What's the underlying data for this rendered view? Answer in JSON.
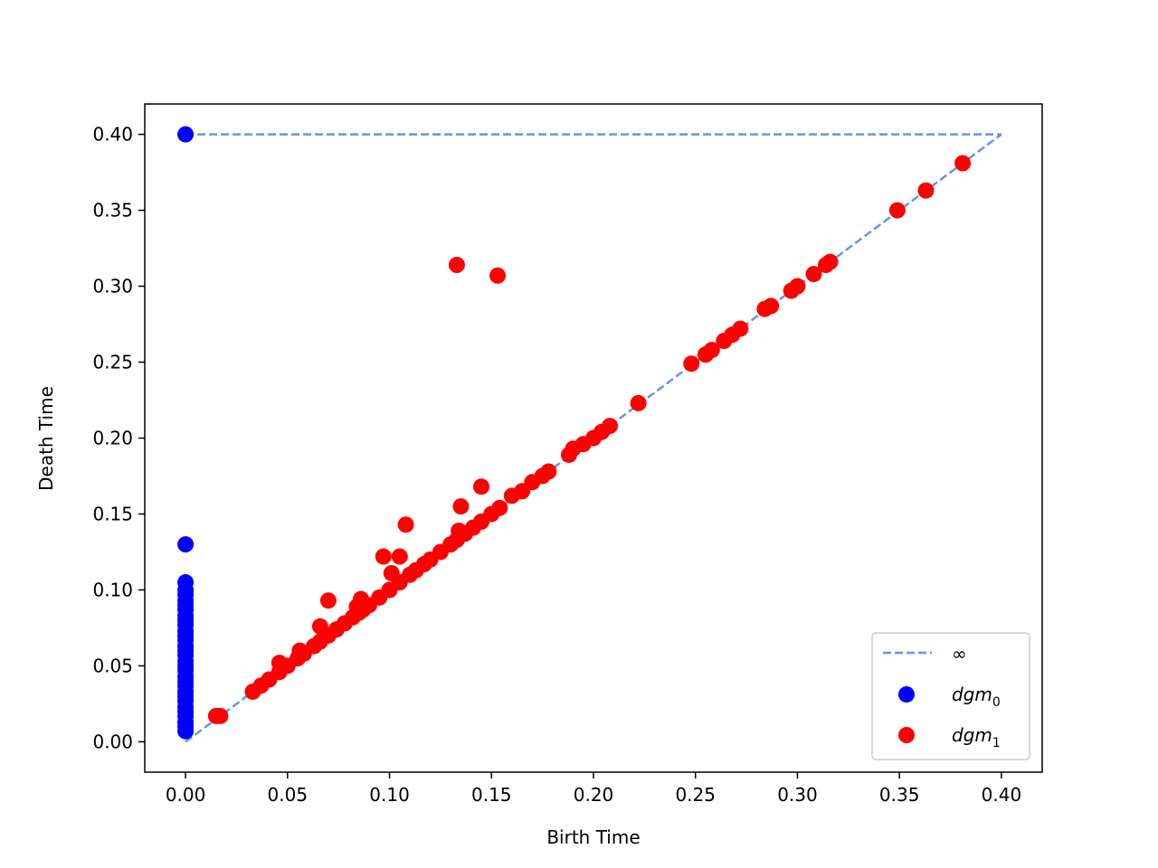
{
  "chart_data": {
    "type": "scatter",
    "title": "",
    "xlabel": "Birth Time",
    "ylabel": "Death Time",
    "xlim": [
      -0.02,
      0.42
    ],
    "ylim": [
      -0.02,
      0.42
    ],
    "xticks": [
      0.0,
      0.05,
      0.1,
      0.15,
      0.2,
      0.25,
      0.3,
      0.35,
      0.4
    ],
    "yticks": [
      0.0,
      0.05,
      0.1,
      0.15,
      0.2,
      0.25,
      0.3,
      0.35,
      0.4
    ],
    "xtick_labels": [
      "0.00",
      "0.05",
      "0.10",
      "0.15",
      "0.20",
      "0.25",
      "0.30",
      "0.35",
      "0.40"
    ],
    "ytick_labels": [
      "0.00",
      "0.05",
      "0.10",
      "0.15",
      "0.20",
      "0.25",
      "0.30",
      "0.35",
      "0.40"
    ],
    "grid": false,
    "legend_position": "lower-right",
    "lines": [
      {
        "name": "∞",
        "style": "dashed",
        "color": "#6495ED",
        "x": [
          0.0,
          0.4
        ],
        "y": [
          0.4,
          0.4
        ]
      },
      {
        "name": "",
        "style": "dashed",
        "color": "#6495ED",
        "x": [
          0.0,
          0.4
        ],
        "y": [
          0.0,
          0.4
        ]
      }
    ],
    "series": [
      {
        "name": "dgm",
        "subscript": "0",
        "color": "#0000FF",
        "x": [
          0,
          0,
          0,
          0,
          0,
          0,
          0,
          0,
          0,
          0,
          0,
          0,
          0,
          0,
          0,
          0,
          0,
          0,
          0,
          0,
          0,
          0,
          0,
          0,
          0,
          0,
          0,
          0,
          0,
          0,
          0,
          0
        ],
        "y": [
          0.4,
          0.13,
          0.105,
          0.1,
          0.097,
          0.093,
          0.09,
          0.087,
          0.083,
          0.08,
          0.077,
          0.073,
          0.07,
          0.067,
          0.063,
          0.06,
          0.057,
          0.053,
          0.05,
          0.047,
          0.043,
          0.04,
          0.037,
          0.033,
          0.03,
          0.027,
          0.023,
          0.02,
          0.017,
          0.013,
          0.01,
          0.007
        ]
      },
      {
        "name": "dgm",
        "subscript": "1",
        "color": "#FF0000",
        "x": [
          0.015,
          0.017,
          0.033,
          0.037,
          0.041,
          0.046,
          0.05,
          0.055,
          0.058,
          0.063,
          0.066,
          0.07,
          0.074,
          0.078,
          0.082,
          0.085,
          0.087,
          0.09,
          0.095,
          0.1,
          0.105,
          0.11,
          0.113,
          0.117,
          0.12,
          0.125,
          0.13,
          0.133,
          0.137,
          0.141,
          0.145,
          0.15,
          0.154,
          0.16,
          0.165,
          0.17,
          0.175,
          0.178,
          0.188,
          0.19,
          0.195,
          0.2,
          0.204,
          0.208,
          0.222,
          0.248,
          0.255,
          0.258,
          0.264,
          0.268,
          0.272,
          0.284,
          0.287,
          0.297,
          0.3,
          0.308,
          0.314,
          0.316,
          0.349,
          0.363,
          0.381,
          0.133,
          0.153,
          0.108,
          0.145,
          0.135,
          0.097,
          0.105,
          0.07,
          0.086,
          0.066,
          0.046,
          0.056,
          0.101,
          0.084,
          0.134
        ],
        "y": [
          0.017,
          0.017,
          0.033,
          0.037,
          0.041,
          0.046,
          0.05,
          0.055,
          0.058,
          0.063,
          0.066,
          0.07,
          0.074,
          0.078,
          0.082,
          0.085,
          0.087,
          0.09,
          0.095,
          0.1,
          0.105,
          0.11,
          0.113,
          0.117,
          0.12,
          0.125,
          0.13,
          0.133,
          0.137,
          0.141,
          0.145,
          0.15,
          0.154,
          0.162,
          0.165,
          0.171,
          0.175,
          0.178,
          0.189,
          0.193,
          0.196,
          0.2,
          0.204,
          0.208,
          0.223,
          0.249,
          0.255,
          0.258,
          0.264,
          0.268,
          0.272,
          0.285,
          0.287,
          0.297,
          0.3,
          0.308,
          0.314,
          0.316,
          0.35,
          0.363,
          0.381,
          0.314,
          0.307,
          0.143,
          0.168,
          0.155,
          0.122,
          0.122,
          0.093,
          0.094,
          0.076,
          0.052,
          0.06,
          0.111,
          0.089,
          0.139
        ]
      }
    ]
  }
}
